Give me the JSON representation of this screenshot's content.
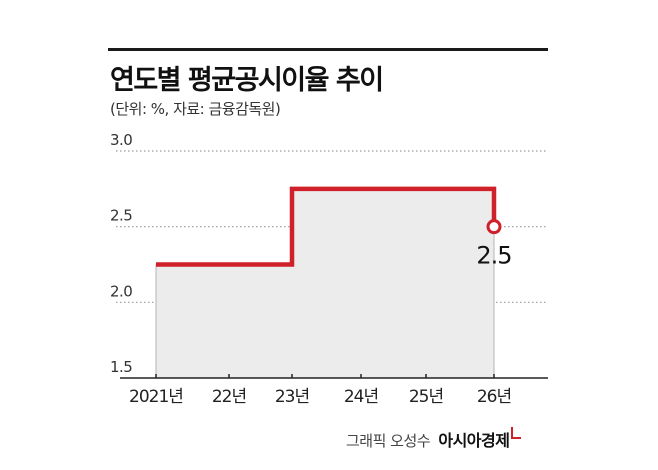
{
  "title": "연도별 평균공시이율 추이",
  "subtitle": "(단위: %, 자료: 금융감독원)",
  "credit": {
    "text": "그래픽 오성수",
    "brand": "아시아경제"
  },
  "chart_data": {
    "type": "line",
    "step": true,
    "categories": [
      "2021년",
      "22년",
      "23년",
      "24년",
      "25년",
      "26년"
    ],
    "series": [
      {
        "values": [
          2.25,
          2.25,
          2.75,
          2.75,
          2.75,
          2.5
        ],
        "color": "#d0202a"
      }
    ],
    "ylim": [
      1.5,
      3.0
    ],
    "yticks": [
      "1.5",
      "2.0",
      "2.5",
      "3.0"
    ],
    "annotations": [
      {
        "category": "26년",
        "value": 2.5,
        "label": "2.5"
      }
    ],
    "grid": "dotted-horizontal",
    "fill_color": "#ececec"
  }
}
